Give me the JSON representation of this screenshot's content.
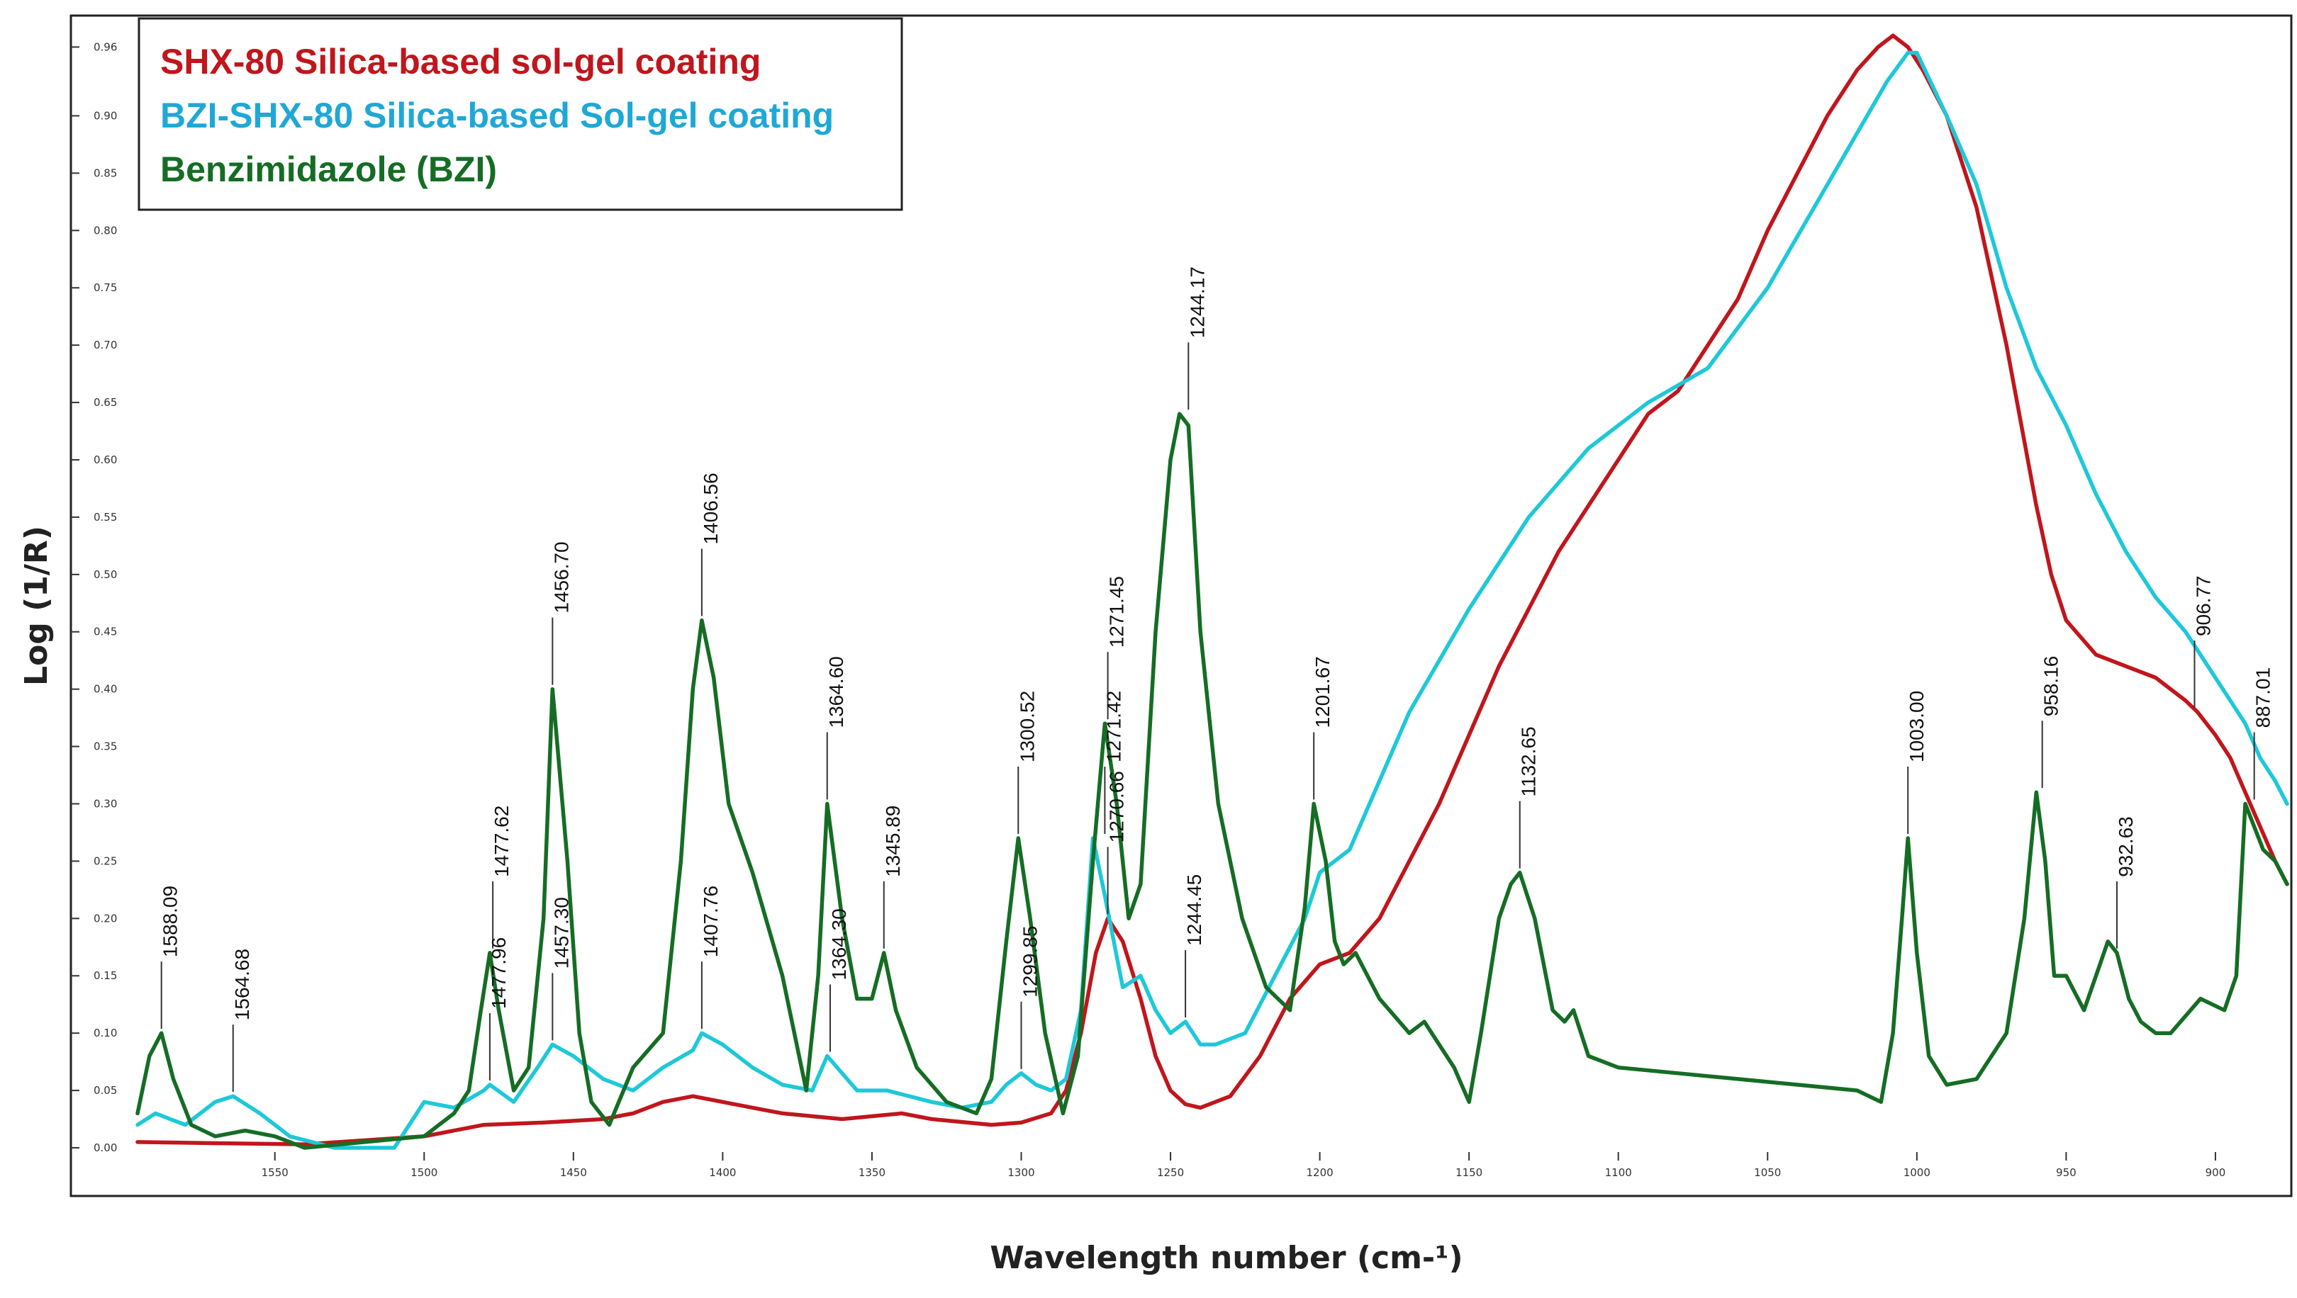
{
  "chart_data": {
    "type": "line",
    "title": "",
    "xlabel": "Wavelength number (cm-¹)",
    "ylabel": "Log (1/R)",
    "xlim": [
      1596,
      876
    ],
    "ylim": [
      0.0,
      0.98
    ],
    "x_ticks": [
      1550,
      1500,
      1450,
      1400,
      1350,
      1300,
      1250,
      1200,
      1150,
      1100,
      1050,
      1000,
      950,
      900
    ],
    "x_tick_labels": [
      "1550",
      "1500",
      "1450",
      "1400",
      "1350",
      "1300",
      "1250",
      "1200",
      "1150",
      "1100",
      "1050",
      "1000",
      "950",
      "900"
    ],
    "y_ticks": [
      0.0,
      0.05,
      0.1,
      0.15,
      0.2,
      0.25,
      0.3,
      0.35,
      0.4,
      0.45,
      0.5,
      0.55,
      0.6,
      0.65,
      0.7,
      0.75,
      0.8,
      0.85,
      0.9,
      0.96
    ],
    "y_tick_labels": [
      "0.00",
      "0.05",
      "0.10",
      "0.15",
      "0.20",
      "0.25",
      "0.30",
      "0.35",
      "0.40",
      "0.45",
      "0.50",
      "0.55",
      "0.60",
      "0.65",
      "0.70",
      "0.75",
      "0.80",
      "0.85",
      "0.90",
      "0.96"
    ],
    "legend_position": "top-left",
    "series": [
      {
        "name": "SHX-80 Silica-based sol-gel coating",
        "color": "#c0161c",
        "x": [
          1596,
          1570,
          1540,
          1500,
          1480,
          1460,
          1440,
          1430,
          1420,
          1410,
          1400,
          1390,
          1380,
          1360,
          1340,
          1330,
          1310,
          1300,
          1290,
          1285,
          1280,
          1275,
          1271,
          1266,
          1260,
          1255,
          1250,
          1245,
          1240,
          1230,
          1220,
          1210,
          1200,
          1190,
          1180,
          1170,
          1160,
          1150,
          1140,
          1120,
          1100,
          1090,
          1080,
          1070,
          1060,
          1050,
          1040,
          1030,
          1020,
          1013,
          1008,
          1003,
          998,
          990,
          980,
          970,
          960,
          955,
          950,
          940,
          930,
          920,
          910,
          906,
          900,
          895,
          890,
          885,
          880,
          876
        ],
        "y": [
          0.005,
          0.004,
          0.003,
          0.01,
          0.02,
          0.022,
          0.025,
          0.03,
          0.04,
          0.045,
          0.04,
          0.035,
          0.03,
          0.025,
          0.03,
          0.025,
          0.02,
          0.022,
          0.03,
          0.05,
          0.1,
          0.17,
          0.2,
          0.18,
          0.13,
          0.08,
          0.05,
          0.038,
          0.035,
          0.045,
          0.08,
          0.13,
          0.16,
          0.17,
          0.2,
          0.25,
          0.3,
          0.36,
          0.42,
          0.52,
          0.6,
          0.64,
          0.66,
          0.7,
          0.74,
          0.8,
          0.85,
          0.9,
          0.94,
          0.96,
          0.97,
          0.96,
          0.94,
          0.9,
          0.82,
          0.7,
          0.56,
          0.5,
          0.46,
          0.43,
          0.42,
          0.41,
          0.39,
          0.38,
          0.36,
          0.34,
          0.31,
          0.28,
          0.25,
          0.23
        ]
      },
      {
        "name": "BZI-SHX-80 Silica-based Sol-gel coating",
        "color": "#1ec8d8",
        "x": [
          1596,
          1590,
          1580,
          1570,
          1564,
          1555,
          1545,
          1530,
          1510,
          1500,
          1490,
          1480,
          1478,
          1470,
          1462,
          1457,
          1450,
          1440,
          1430,
          1420,
          1410,
          1407,
          1400,
          1390,
          1380,
          1370,
          1365,
          1355,
          1345,
          1330,
          1320,
          1310,
          1305,
          1300,
          1295,
          1290,
          1285,
          1280,
          1276,
          1272,
          1266,
          1260,
          1255,
          1250,
          1245,
          1240,
          1235,
          1225,
          1215,
          1205,
          1200,
          1190,
          1180,
          1170,
          1150,
          1130,
          1110,
          1090,
          1070,
          1050,
          1030,
          1010,
          1003,
          1000,
          990,
          980,
          970,
          960,
          950,
          940,
          930,
          920,
          910,
          900,
          890,
          885,
          880,
          876
        ],
        "y": [
          0.02,
          0.03,
          0.02,
          0.04,
          0.045,
          0.03,
          0.01,
          0.0,
          0.0,
          0.04,
          0.035,
          0.05,
          0.055,
          0.04,
          0.07,
          0.09,
          0.08,
          0.06,
          0.05,
          0.07,
          0.085,
          0.1,
          0.09,
          0.07,
          0.055,
          0.05,
          0.08,
          0.05,
          0.05,
          0.04,
          0.035,
          0.04,
          0.055,
          0.065,
          0.055,
          0.05,
          0.06,
          0.12,
          0.27,
          0.22,
          0.14,
          0.15,
          0.12,
          0.1,
          0.11,
          0.09,
          0.09,
          0.1,
          0.15,
          0.2,
          0.24,
          0.26,
          0.32,
          0.38,
          0.47,
          0.55,
          0.61,
          0.65,
          0.68,
          0.75,
          0.84,
          0.93,
          0.955,
          0.955,
          0.9,
          0.84,
          0.75,
          0.68,
          0.63,
          0.57,
          0.52,
          0.48,
          0.45,
          0.41,
          0.37,
          0.34,
          0.32,
          0.3
        ]
      },
      {
        "name": "Benzimidazole (BZI)",
        "color": "#156d24",
        "x": [
          1596,
          1592,
          1588,
          1584,
          1578,
          1570,
          1560,
          1550,
          1540,
          1520,
          1500,
          1495,
          1490,
          1485,
          1481,
          1478,
          1475,
          1470,
          1465,
          1460,
          1457,
          1452,
          1448,
          1444,
          1438,
          1430,
          1420,
          1414,
          1410,
          1407,
          1403,
          1398,
          1390,
          1380,
          1372,
          1368,
          1365,
          1360,
          1355,
          1350,
          1346,
          1342,
          1335,
          1325,
          1315,
          1310,
          1305,
          1301,
          1297,
          1292,
          1286,
          1281,
          1276,
          1272,
          1268,
          1264,
          1260,
          1255,
          1250,
          1247,
          1244,
          1240,
          1234,
          1226,
          1218,
          1210,
          1205,
          1202,
          1198,
          1195,
          1192,
          1188,
          1180,
          1170,
          1165,
          1160,
          1155,
          1150,
          1146,
          1140,
          1136,
          1133,
          1128,
          1122,
          1118,
          1115,
          1110,
          1100,
          1080,
          1060,
          1040,
          1020,
          1012,
          1008,
          1005,
          1003,
          1000,
          996,
          990,
          980,
          970,
          964,
          960,
          957,
          954,
          950,
          944,
          940,
          936,
          933,
          929,
          925,
          920,
          915,
          905,
          897,
          893,
          890,
          887,
          884,
          880,
          876
        ],
        "y": [
          0.03,
          0.08,
          0.1,
          0.06,
          0.02,
          0.01,
          0.015,
          0.01,
          0.0,
          0.005,
          0.01,
          0.02,
          0.03,
          0.05,
          0.12,
          0.17,
          0.12,
          0.05,
          0.07,
          0.2,
          0.4,
          0.25,
          0.1,
          0.04,
          0.02,
          0.07,
          0.1,
          0.25,
          0.4,
          0.46,
          0.41,
          0.3,
          0.24,
          0.15,
          0.05,
          0.15,
          0.3,
          0.2,
          0.13,
          0.13,
          0.17,
          0.12,
          0.07,
          0.04,
          0.03,
          0.06,
          0.18,
          0.27,
          0.2,
          0.1,
          0.03,
          0.08,
          0.25,
          0.37,
          0.3,
          0.2,
          0.23,
          0.45,
          0.6,
          0.64,
          0.63,
          0.45,
          0.3,
          0.2,
          0.14,
          0.12,
          0.21,
          0.3,
          0.25,
          0.18,
          0.16,
          0.17,
          0.13,
          0.1,
          0.11,
          0.09,
          0.07,
          0.04,
          0.1,
          0.2,
          0.23,
          0.24,
          0.2,
          0.12,
          0.11,
          0.12,
          0.08,
          0.07,
          0.065,
          0.06,
          0.055,
          0.05,
          0.04,
          0.1,
          0.2,
          0.27,
          0.17,
          0.08,
          0.055,
          0.06,
          0.1,
          0.2,
          0.31,
          0.25,
          0.15,
          0.15,
          0.12,
          0.15,
          0.18,
          0.17,
          0.13,
          0.11,
          0.1,
          0.1,
          0.13,
          0.12,
          0.15,
          0.3,
          0.28,
          0.26,
          0.25,
          0.23
        ]
      }
    ],
    "annotations": [
      {
        "text": "1588.09",
        "x": 1588,
        "y": 0.1
      },
      {
        "text": "1564.68",
        "x": 1564,
        "y": 0.045
      },
      {
        "text": "1477.62",
        "x": 1477,
        "y": 0.17
      },
      {
        "text": "1477.96",
        "x": 1478,
        "y": 0.055
      },
      {
        "text": "1456.70",
        "x": 1457,
        "y": 0.4
      },
      {
        "text": "1457.30",
        "x": 1457,
        "y": 0.09
      },
      {
        "text": "1406.56",
        "x": 1407,
        "y": 0.46
      },
      {
        "text": "1407.76",
        "x": 1407,
        "y": 0.1
      },
      {
        "text": "1364.60",
        "x": 1365,
        "y": 0.3
      },
      {
        "text": "1364.30",
        "x": 1364,
        "y": 0.08
      },
      {
        "text": "1345.89",
        "x": 1346,
        "y": 0.17
      },
      {
        "text": "1299.85",
        "x": 1300,
        "y": 0.065
      },
      {
        "text": "1300.52",
        "x": 1301,
        "y": 0.27
      },
      {
        "text": "1271.45",
        "x": 1271,
        "y": 0.37
      },
      {
        "text": "1270.66",
        "x": 1271,
        "y": 0.2
      },
      {
        "text": "1271.42",
        "x": 1272,
        "y": 0.27
      },
      {
        "text": "1244.45",
        "x": 1245,
        "y": 0.11
      },
      {
        "text": "1244.17",
        "x": 1244,
        "y": 0.64
      },
      {
        "text": "1201.67",
        "x": 1202,
        "y": 0.3
      },
      {
        "text": "1132.65",
        "x": 1133,
        "y": 0.24
      },
      {
        "text": "1003.00",
        "x": 1003,
        "y": 0.27
      },
      {
        "text": "958.16",
        "x": 958,
        "y": 0.31
      },
      {
        "text": "932.63",
        "x": 933,
        "y": 0.17
      },
      {
        "text": "906.77",
        "x": 907,
        "y": 0.38
      },
      {
        "text": "887.01",
        "x": 887,
        "y": 0.3
      }
    ]
  }
}
